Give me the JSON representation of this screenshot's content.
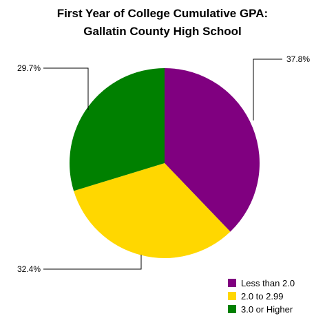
{
  "chart_data": {
    "type": "pie",
    "title_lines": [
      "First Year of College Cumulative GPA:",
      "Gallatin County High School"
    ],
    "slices": [
      {
        "name": "Less than 2.0",
        "value": 37.8,
        "label": "37.8%",
        "color": "#800080"
      },
      {
        "name": "2.0 to 2.99",
        "value": 32.4,
        "label": "32.4%",
        "color": "#FFD700"
      },
      {
        "name": "3.0 or Higher",
        "value": 29.7,
        "label": "29.7%",
        "color": "#008000"
      }
    ],
    "start": "12 o'clock",
    "direction": "clockwise",
    "legend_position": "bottom-right"
  }
}
